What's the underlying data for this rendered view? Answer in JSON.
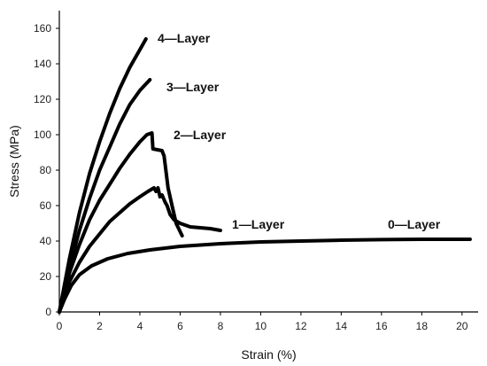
{
  "chart_data": {
    "type": "line",
    "xlabel": "Strain (%)",
    "ylabel": "Stress (MPa)",
    "xlim": [
      0,
      20.8
    ],
    "ylim": [
      0,
      170
    ],
    "xticks": [
      0,
      2,
      4,
      6,
      8,
      10,
      12,
      14,
      16,
      18,
      20
    ],
    "yticks": [
      0,
      20,
      40,
      60,
      80,
      100,
      120,
      140,
      160
    ],
    "grid": false,
    "legend": "none",
    "series": [
      {
        "name": "0—Layer",
        "points": [
          [
            0,
            0
          ],
          [
            0.25,
            7
          ],
          [
            0.6,
            15
          ],
          [
            1,
            21
          ],
          [
            1.6,
            26
          ],
          [
            2.4,
            30
          ],
          [
            3.4,
            33
          ],
          [
            4.5,
            35
          ],
          [
            6,
            37
          ],
          [
            8,
            38.5
          ],
          [
            10,
            39.5
          ],
          [
            12,
            40
          ],
          [
            14,
            40.5
          ],
          [
            16,
            40.8
          ],
          [
            18,
            41
          ],
          [
            20,
            41
          ],
          [
            20.4,
            41
          ]
        ]
      },
      {
        "name": "1—Layer",
        "points": [
          [
            0,
            0
          ],
          [
            0.5,
            17
          ],
          [
            1,
            28
          ],
          [
            1.5,
            37
          ],
          [
            2,
            44
          ],
          [
            2.5,
            51
          ],
          [
            3,
            56
          ],
          [
            3.5,
            61
          ],
          [
            4,
            65
          ],
          [
            4.4,
            68
          ],
          [
            4.7,
            70
          ],
          [
            4.8,
            68
          ],
          [
            4.9,
            70
          ],
          [
            5.0,
            65
          ],
          [
            5.1,
            66
          ],
          [
            5.25,
            62
          ],
          [
            5.35,
            60
          ],
          [
            5.5,
            55
          ],
          [
            5.7,
            52
          ],
          [
            6.0,
            50
          ],
          [
            6.5,
            48
          ],
          [
            7,
            47.5
          ],
          [
            7.5,
            47
          ],
          [
            8.0,
            46
          ]
        ]
      },
      {
        "name": "2—Layer",
        "points": [
          [
            0,
            0
          ],
          [
            0.5,
            22
          ],
          [
            1,
            38
          ],
          [
            1.5,
            52
          ],
          [
            2,
            63
          ],
          [
            2.5,
            72
          ],
          [
            3,
            81
          ],
          [
            3.5,
            89
          ],
          [
            4,
            96
          ],
          [
            4.35,
            100
          ],
          [
            4.6,
            101
          ],
          [
            4.65,
            92
          ],
          [
            5.1,
            91
          ],
          [
            5.2,
            88
          ],
          [
            5.4,
            70
          ],
          [
            5.6,
            60
          ],
          [
            5.8,
            50
          ],
          [
            6.1,
            43
          ]
        ]
      },
      {
        "name": "3—Layer",
        "points": [
          [
            0,
            0
          ],
          [
            0.5,
            25
          ],
          [
            1,
            46
          ],
          [
            1.5,
            64
          ],
          [
            2,
            80
          ],
          [
            2.5,
            93
          ],
          [
            3,
            106
          ],
          [
            3.5,
            117
          ],
          [
            4,
            125
          ],
          [
            4.5,
            131
          ]
        ]
      },
      {
        "name": "4—Layer",
        "points": [
          [
            0,
            0
          ],
          [
            0.5,
            30
          ],
          [
            1,
            56
          ],
          [
            1.5,
            78
          ],
          [
            2,
            96
          ],
          [
            2.5,
            112
          ],
          [
            3,
            126
          ],
          [
            3.5,
            138
          ],
          [
            4,
            148
          ],
          [
            4.3,
            154
          ]
        ]
      }
    ]
  }
}
